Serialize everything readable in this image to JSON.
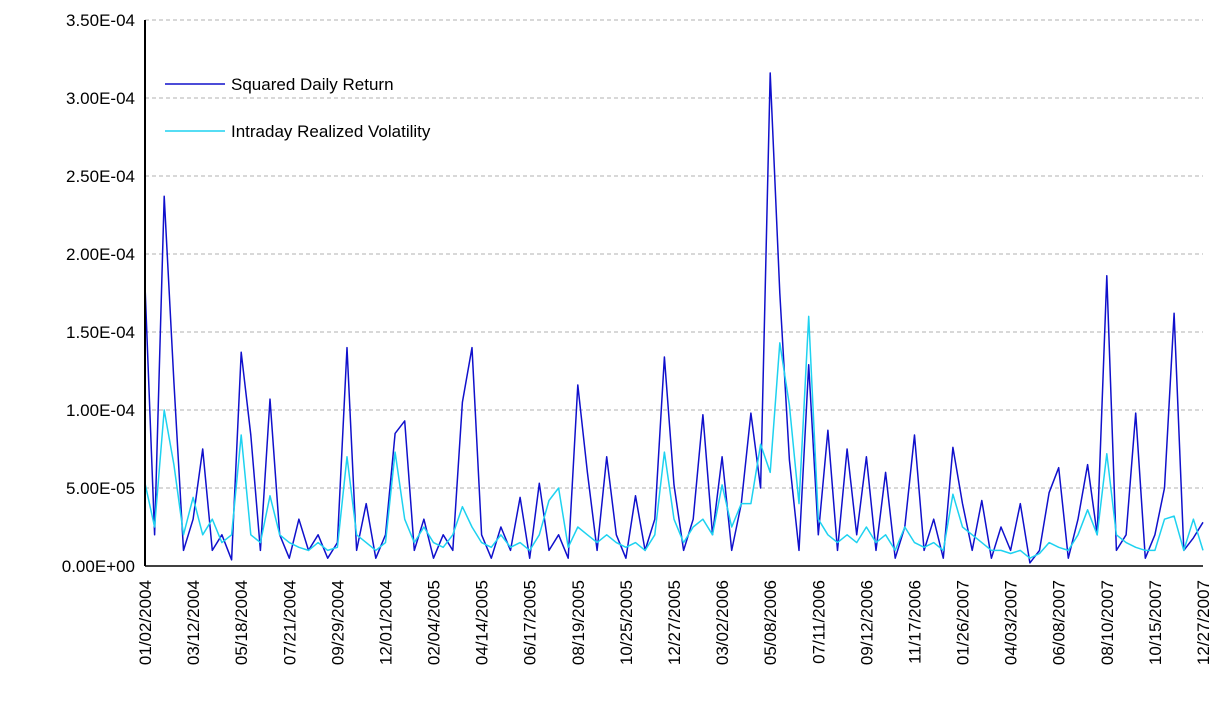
{
  "chart_data": {
    "type": "line",
    "categories": [
      "01/02/2004",
      null,
      null,
      null,
      null,
      "03/12/2004",
      null,
      null,
      null,
      null,
      "05/18/2004",
      null,
      null,
      null,
      null,
      "07/21/2004",
      null,
      null,
      null,
      null,
      "09/29/2004",
      null,
      null,
      null,
      null,
      "12/01/2004",
      null,
      null,
      null,
      null,
      "02/04/2005",
      null,
      null,
      null,
      null,
      "04/14/2005",
      null,
      null,
      null,
      null,
      "06/17/2005",
      null,
      null,
      null,
      null,
      "08/19/2005",
      null,
      null,
      null,
      null,
      "10/25/2005",
      null,
      null,
      null,
      null,
      "12/27/2005",
      null,
      null,
      null,
      null,
      "03/02/2006",
      null,
      null,
      null,
      null,
      "05/08/2006",
      null,
      null,
      null,
      null,
      "07/11/2006",
      null,
      null,
      null,
      null,
      "09/12/2006",
      null,
      null,
      null,
      null,
      "11/17/2006",
      null,
      null,
      null,
      null,
      "01/26/2007",
      null,
      null,
      null,
      null,
      "04/03/2007",
      null,
      null,
      null,
      null,
      "06/08/2007",
      null,
      null,
      null,
      null,
      "08/10/2007",
      null,
      null,
      null,
      null,
      "10/15/2007",
      null,
      null,
      null,
      null,
      "12/27/2007"
    ],
    "series": [
      {
        "name": "Squared Daily Return",
        "color": "#1010cc",
        "values": [
          0.00018,
          2e-05,
          0.000237,
          0.000118,
          1e-05,
          3e-05,
          7.5e-05,
          1e-05,
          2e-05,
          4e-06,
          0.000137,
          8.4e-05,
          1e-05,
          0.000107,
          2e-05,
          5e-06,
          3e-05,
          1e-05,
          2e-05,
          5e-06,
          1.5e-05,
          0.00014,
          1e-05,
          4e-05,
          5e-06,
          2e-05,
          8.5e-05,
          9.3e-05,
          1e-05,
          3e-05,
          5e-06,
          2e-05,
          1e-05,
          0.000105,
          0.00014,
          2e-05,
          5e-06,
          2.5e-05,
          1e-05,
          4.4e-05,
          5e-06,
          5.3e-05,
          1e-05,
          2e-05,
          5e-06,
          0.000116,
          6e-05,
          1e-05,
          7e-05,
          2e-05,
          5e-06,
          4.5e-05,
          1e-05,
          3e-05,
          0.000134,
          5.2e-05,
          1e-05,
          3e-05,
          9.7e-05,
          2e-05,
          7e-05,
          1e-05,
          4e-05,
          9.8e-05,
          5e-05,
          0.000316,
          0.000175,
          6.8e-05,
          1e-05,
          0.000129,
          2e-05,
          8.7e-05,
          1e-05,
          7.5e-05,
          2e-05,
          7e-05,
          1e-05,
          6e-05,
          5e-06,
          2.5e-05,
          8.4e-05,
          1e-05,
          3e-05,
          5e-06,
          7.6e-05,
          4e-05,
          1e-05,
          4.2e-05,
          5e-06,
          2.5e-05,
          1e-05,
          4e-05,
          2e-06,
          1e-05,
          4.7e-05,
          6.3e-05,
          5e-06,
          3e-05,
          6.5e-05,
          2e-05,
          0.000186,
          1e-05,
          2e-05,
          9.8e-05,
          5e-06,
          2e-05,
          5e-05,
          0.000162,
          1e-05,
          1.8e-05,
          2.8e-05
        ]
      },
      {
        "name": "Intraday Realized Volatility",
        "color": "#1ed2f0",
        "values": [
          5.3e-05,
          2.5e-05,
          0.0001,
          6.5e-05,
          2e-05,
          4.4e-05,
          2e-05,
          3e-05,
          1.5e-05,
          2e-05,
          8.4e-05,
          2e-05,
          1.5e-05,
          4.5e-05,
          2e-05,
          1.5e-05,
          1.2e-05,
          1e-05,
          1.5e-05,
          1e-05,
          1.2e-05,
          7e-05,
          2e-05,
          1.5e-05,
          1e-05,
          1.5e-05,
          7.3e-05,
          3e-05,
          1.5e-05,
          2.5e-05,
          1.5e-05,
          1.2e-05,
          2e-05,
          3.8e-05,
          2.5e-05,
          1.5e-05,
          1.2e-05,
          2e-05,
          1.2e-05,
          1.5e-05,
          1e-05,
          2e-05,
          4.2e-05,
          5e-05,
          1.2e-05,
          2.5e-05,
          2e-05,
          1.5e-05,
          2e-05,
          1.5e-05,
          1.2e-05,
          1.5e-05,
          1e-05,
          2e-05,
          7.3e-05,
          3e-05,
          1.5e-05,
          2.5e-05,
          3e-05,
          2e-05,
          5.2e-05,
          2.5e-05,
          4e-05,
          4e-05,
          7.8e-05,
          6e-05,
          0.000143,
          0.000103,
          4e-05,
          0.00016,
          3e-05,
          2e-05,
          1.5e-05,
          2e-05,
          1.5e-05,
          2.5e-05,
          1.5e-05,
          2e-05,
          1e-05,
          2.5e-05,
          1.5e-05,
          1.2e-05,
          1.5e-05,
          1e-05,
          4.6e-05,
          2.5e-05,
          2e-05,
          1.5e-05,
          1e-05,
          1e-05,
          8e-06,
          1e-05,
          5e-06,
          8e-06,
          1.5e-05,
          1.2e-05,
          1e-05,
          2e-05,
          3.6e-05,
          2e-05,
          7.2e-05,
          2e-05,
          1.5e-05,
          1.2e-05,
          1e-05,
          1e-05,
          3e-05,
          3.2e-05,
          1e-05,
          3e-05,
          1e-05
        ]
      }
    ],
    "ylim": [
      0,
      0.00035
    ],
    "yticks": [
      {
        "value": 0,
        "label": "0.00E+00"
      },
      {
        "value": 5e-05,
        "label": "5.00E-05"
      },
      {
        "value": 0.0001,
        "label": "1.00E-04"
      },
      {
        "value": 0.00015,
        "label": "1.50E-04"
      },
      {
        "value": 0.0002,
        "label": "2.00E-04"
      },
      {
        "value": 0.00025,
        "label": "2.50E-04"
      },
      {
        "value": 0.0003,
        "label": "3.00E-04"
      },
      {
        "value": 0.00035,
        "label": "3.50E-04"
      }
    ],
    "grid": true,
    "legend": "upper left"
  }
}
